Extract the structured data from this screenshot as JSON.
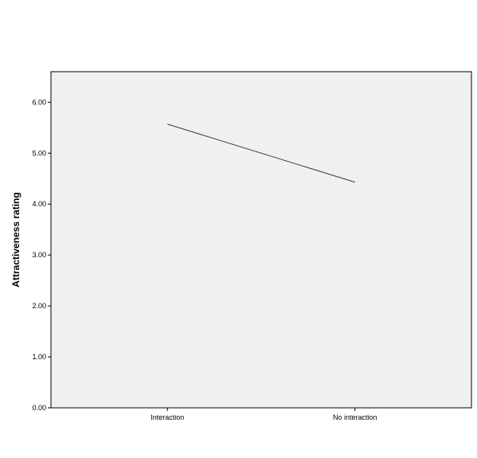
{
  "chart_data": {
    "type": "line",
    "title": "",
    "xlabel": "",
    "ylabel": "Attractiveness rating",
    "categories": [
      "Interaction",
      "No interaction"
    ],
    "series": [
      {
        "values": [
          5.57,
          4.43
        ],
        "color": "#3a3a3a"
      }
    ],
    "ylim": [
      0,
      6.6
    ],
    "yticks": [
      0,
      1,
      2,
      3,
      4,
      5,
      6
    ],
    "ytick_labels": [
      "0.00",
      "1.00",
      "2.00",
      "3.00",
      "4.00",
      "5.00",
      "6.00"
    ],
    "grid": false,
    "legend": "none",
    "colors": {
      "plot_background": "#f0f0f0",
      "axis": "#000000"
    }
  }
}
